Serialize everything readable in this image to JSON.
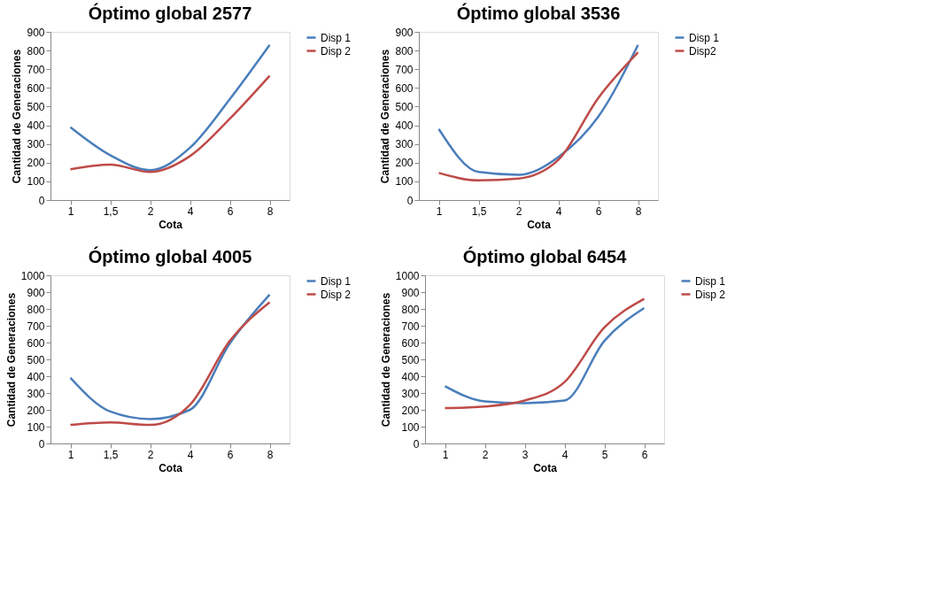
{
  "chart_data": [
    {
      "type": "line",
      "title": "Óptimo global 2577",
      "xlabel": "Cota",
      "ylabel": "Cantidad de Generaciones",
      "categories": [
        "1",
        "1,5",
        "2",
        "4",
        "6",
        "8"
      ],
      "ylim": [
        0,
        900
      ],
      "yticks": [
        0,
        100,
        200,
        300,
        400,
        500,
        600,
        700,
        800,
        900
      ],
      "grid": false,
      "legend": "right",
      "marker": "none",
      "series": [
        {
          "name": "Disp 1",
          "color": "#4a7ebb",
          "values": [
            390,
            240,
            160,
            280,
            540,
            830
          ]
        },
        {
          "name": "Disp 2",
          "color": "#be4b48",
          "values": [
            165,
            190,
            150,
            235,
            435,
            665
          ]
        }
      ]
    },
    {
      "type": "line",
      "title": "Óptimo global 3536",
      "xlabel": "Cota",
      "ylabel": "Cantidad de Generaciones",
      "categories": [
        "1",
        "1,5",
        "2",
        "4",
        "6",
        "8"
      ],
      "ylim": [
        0,
        900
      ],
      "yticks": [
        0,
        100,
        200,
        300,
        400,
        500,
        600,
        700,
        800,
        900
      ],
      "grid": false,
      "legend": "right",
      "marker": "none",
      "series": [
        {
          "name": "Disp 1",
          "color": "#4a7ebb",
          "values": [
            380,
            150,
            135,
            230,
            445,
            830
          ]
        },
        {
          "name": "Disp2",
          "color": "#be4b48",
          "values": [
            145,
            105,
            115,
            215,
            545,
            790
          ]
        }
      ]
    },
    {
      "type": "line",
      "title": "Óptimo global 4005",
      "xlabel": "Cota",
      "ylabel": "Cantidad de Generaciones",
      "categories": [
        "1",
        "1,5",
        "2",
        "4",
        "6",
        "8"
      ],
      "ylim": [
        0,
        1000
      ],
      "yticks": [
        0,
        100,
        200,
        300,
        400,
        500,
        600,
        700,
        800,
        900,
        1000
      ],
      "grid": false,
      "legend": "right",
      "marker": "none",
      "series": [
        {
          "name": "Disp 1",
          "color": "#4a7ebb",
          "values": [
            390,
            190,
            145,
            200,
            595,
            885
          ]
        },
        {
          "name": "Disp 2",
          "color": "#be4b48",
          "values": [
            110,
            125,
            110,
            230,
            610,
            840
          ]
        }
      ]
    },
    {
      "type": "line",
      "title": "Óptimo global 6454",
      "xlabel": "Cota",
      "ylabel": "Cantidad de Generaciones",
      "categories": [
        "1",
        "2",
        "3",
        "4",
        "5",
        "6"
      ],
      "ylim": [
        0,
        1000
      ],
      "yticks": [
        0,
        100,
        200,
        300,
        400,
        500,
        600,
        700,
        800,
        900,
        1000
      ],
      "grid": false,
      "legend": "right",
      "marker": "none",
      "series": [
        {
          "name": "Disp 1",
          "color": "#4a7ebb",
          "values": [
            340,
            250,
            240,
            255,
            610,
            805
          ]
        },
        {
          "name": "Disp 2",
          "color": "#be4b48",
          "values": [
            210,
            220,
            255,
            365,
            690,
            860
          ]
        }
      ]
    }
  ]
}
